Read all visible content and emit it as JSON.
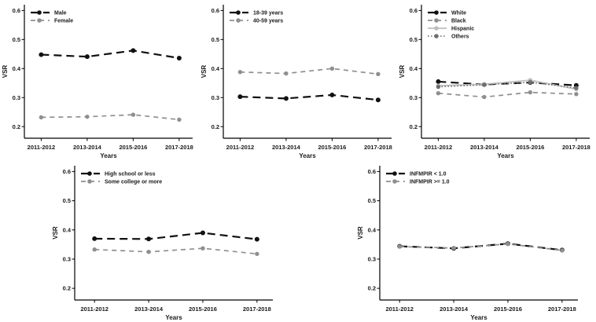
{
  "figure": {
    "background": "#ffffff",
    "axis_color": "#000000",
    "black_series_color": "#111111",
    "gray_series_color": "#8f8f8f",
    "light_series_color": "#bdbdbd",
    "dark_dot_series_color": "#6e6e6e"
  },
  "chart_data": [
    {
      "id": "sex",
      "type": "line",
      "title": "",
      "xlabel": "Years",
      "ylabel": "VSR",
      "categories": [
        "2011-2012",
        "2013-2014",
        "2015-2016",
        "2017-2018"
      ],
      "yticks": [
        0.2,
        0.3,
        0.4,
        0.5,
        0.6
      ],
      "ylim": [
        0.16,
        0.62
      ],
      "grid": false,
      "legend_position": "top-left",
      "series": [
        {
          "name": "Male",
          "values": [
            0.448,
            0.441,
            0.462,
            0.436
          ],
          "color": "#111111",
          "style": "long-dash"
        },
        {
          "name": "Female",
          "values": [
            0.232,
            0.234,
            0.241,
            0.224
          ],
          "color": "#8f8f8f",
          "style": "dash"
        }
      ]
    },
    {
      "id": "age",
      "type": "line",
      "title": "",
      "xlabel": "Years",
      "ylabel": "VSR",
      "categories": [
        "2011-2012",
        "2013-2014",
        "2015-2016",
        "2017-2018"
      ],
      "yticks": [
        0.2,
        0.3,
        0.4,
        0.5,
        0.6
      ],
      "ylim": [
        0.16,
        0.62
      ],
      "grid": false,
      "legend_position": "top-left",
      "series": [
        {
          "name": "18-39 years",
          "values": [
            0.303,
            0.297,
            0.309,
            0.292
          ],
          "color": "#111111",
          "style": "long-dash"
        },
        {
          "name": "40-59 years",
          "values": [
            0.388,
            0.383,
            0.4,
            0.381
          ],
          "color": "#8f8f8f",
          "style": "dash"
        }
      ]
    },
    {
      "id": "race",
      "type": "line",
      "title": "",
      "xlabel": "Years",
      "ylabel": "VSR",
      "categories": [
        "2011-2012",
        "2013-2014",
        "2015-2016",
        "2017-2018"
      ],
      "yticks": [
        0.2,
        0.3,
        0.4,
        0.5,
        0.6
      ],
      "ylim": [
        0.16,
        0.62
      ],
      "grid": false,
      "legend_position": "top-left",
      "series": [
        {
          "name": "White",
          "values": [
            0.355,
            0.345,
            0.352,
            0.342
          ],
          "color": "#111111",
          "style": "long-dash"
        },
        {
          "name": "Black",
          "values": [
            0.315,
            0.302,
            0.318,
            0.312
          ],
          "color": "#8f8f8f",
          "style": "dash"
        },
        {
          "name": "Hispanic",
          "values": [
            0.341,
            0.346,
            0.36,
            0.329
          ],
          "color": "#bdbdbd",
          "style": "solid"
        },
        {
          "name": "Others",
          "values": [
            0.337,
            0.344,
            0.353,
            0.333
          ],
          "color": "#6e6e6e",
          "style": "dot"
        }
      ]
    },
    {
      "id": "education",
      "type": "line",
      "title": "",
      "xlabel": "Years",
      "ylabel": "VSR",
      "categories": [
        "2011-2012",
        "2013-2014",
        "2015-2016",
        "2017-2018"
      ],
      "yticks": [
        0.2,
        0.3,
        0.4,
        0.5,
        0.6
      ],
      "ylim": [
        0.16,
        0.62
      ],
      "grid": false,
      "legend_position": "top-left",
      "series": [
        {
          "name": "High school or less",
          "values": [
            0.37,
            0.369,
            0.39,
            0.368
          ],
          "color": "#111111",
          "style": "long-dash"
        },
        {
          "name": "Some college or more",
          "values": [
            0.333,
            0.325,
            0.337,
            0.318
          ],
          "color": "#8f8f8f",
          "style": "dash"
        }
      ]
    },
    {
      "id": "income",
      "type": "line",
      "title": "",
      "xlabel": "Years",
      "ylabel": "VSR",
      "categories": [
        "2011-2012",
        "2013-2014",
        "2015-2016",
        "2017-2018"
      ],
      "yticks": [
        0.2,
        0.3,
        0.4,
        0.5,
        0.6
      ],
      "ylim": [
        0.16,
        0.62
      ],
      "grid": false,
      "legend_position": "top-left",
      "series": [
        {
          "name": "INFMPIR < 1.0",
          "values": [
            0.344,
            0.337,
            0.353,
            0.331
          ],
          "color": "#111111",
          "style": "long-dash"
        },
        {
          "name": "INFMPIR >= 1.0",
          "values": [
            0.343,
            0.338,
            0.352,
            0.33
          ],
          "color": "#8f8f8f",
          "style": "dash"
        }
      ]
    }
  ]
}
